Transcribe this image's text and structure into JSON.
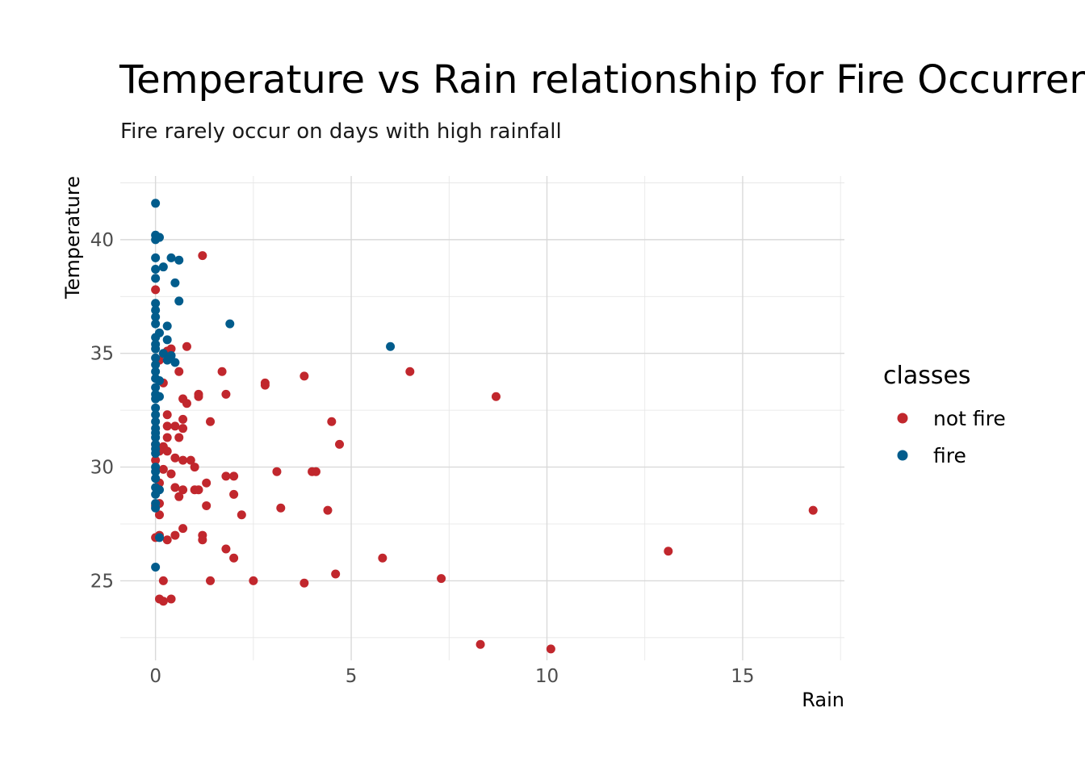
{
  "chart_data": {
    "type": "scatter",
    "title": "Temperature vs Rain relationship for Fire Occurrence",
    "subtitle": "Fire rarely occur on days with high rainfall",
    "xlabel": "Rain",
    "ylabel": "Temperature",
    "xlim": [
      -0.9,
      17.6
    ],
    "ylim": [
      21.5,
      42.8
    ],
    "x_ticks": [
      0,
      5,
      10,
      15
    ],
    "x_tick_labels": [
      "0",
      "5",
      "10",
      "15"
    ],
    "y_ticks": [
      25,
      30,
      35,
      40
    ],
    "y_tick_labels": [
      "25",
      "30",
      "35",
      "40"
    ],
    "grid": true,
    "legend_title": "classes",
    "legend_position": "right",
    "series": [
      {
        "name": "not fire",
        "color": "#c1272d",
        "points": [
          [
            1.2,
            39.3
          ],
          [
            0.0,
            37.8
          ],
          [
            0.8,
            35.3
          ],
          [
            0.4,
            35.2
          ],
          [
            0.3,
            35.1
          ],
          [
            0.1,
            34.7
          ],
          [
            0.6,
            34.2
          ],
          [
            0.2,
            33.7
          ],
          [
            0.7,
            33.0
          ],
          [
            0.8,
            32.8
          ],
          [
            0.3,
            32.3
          ],
          [
            0.7,
            32.1
          ],
          [
            0.5,
            31.8
          ],
          [
            0.3,
            31.8
          ],
          [
            0.7,
            31.7
          ],
          [
            0.3,
            31.3
          ],
          [
            0.6,
            31.3
          ],
          [
            0.0,
            31.0
          ],
          [
            0.2,
            30.9
          ],
          [
            0.3,
            30.7
          ],
          [
            0.1,
            30.7
          ],
          [
            0.5,
            30.4
          ],
          [
            0.7,
            30.3
          ],
          [
            0.9,
            30.3
          ],
          [
            0.0,
            30.3
          ],
          [
            1.0,
            30.0
          ],
          [
            0.2,
            29.9
          ],
          [
            0.4,
            29.7
          ],
          [
            0.1,
            29.3
          ],
          [
            0.5,
            29.1
          ],
          [
            0.7,
            29.0
          ],
          [
            1.0,
            29.0
          ],
          [
            0.6,
            28.7
          ],
          [
            0.1,
            28.4
          ],
          [
            0.0,
            28.3
          ],
          [
            0.1,
            27.9
          ],
          [
            0.7,
            27.3
          ],
          [
            0.5,
            27.0
          ],
          [
            0.1,
            27.0
          ],
          [
            0.3,
            26.8
          ],
          [
            0.0,
            26.9
          ],
          [
            0.2,
            25.0
          ],
          [
            0.1,
            24.2
          ],
          [
            0.2,
            24.1
          ],
          [
            0.4,
            24.2
          ],
          [
            1.1,
            33.2
          ],
          [
            1.1,
            33.1
          ],
          [
            1.4,
            32.0
          ],
          [
            1.3,
            29.3
          ],
          [
            1.1,
            29.0
          ],
          [
            1.3,
            28.3
          ],
          [
            1.2,
            27.0
          ],
          [
            1.2,
            26.8
          ],
          [
            1.4,
            25.0
          ],
          [
            1.7,
            34.2
          ],
          [
            1.8,
            33.2
          ],
          [
            1.8,
            29.6
          ],
          [
            2.0,
            29.6
          ],
          [
            2.0,
            28.8
          ],
          [
            2.2,
            27.9
          ],
          [
            1.8,
            26.4
          ],
          [
            2.0,
            26.0
          ],
          [
            2.5,
            25.0
          ],
          [
            2.8,
            33.7
          ],
          [
            2.8,
            33.6
          ],
          [
            3.1,
            29.8
          ],
          [
            3.2,
            28.2
          ],
          [
            3.8,
            34.0
          ],
          [
            4.0,
            29.8
          ],
          [
            4.1,
            29.8
          ],
          [
            4.5,
            32.0
          ],
          [
            4.7,
            31.0
          ],
          [
            4.4,
            28.1
          ],
          [
            4.6,
            25.3
          ],
          [
            3.8,
            24.9
          ],
          [
            6.5,
            34.2
          ],
          [
            5.8,
            26.0
          ],
          [
            7.3,
            25.1
          ],
          [
            8.7,
            33.1
          ],
          [
            8.3,
            22.2
          ],
          [
            10.1,
            22.0
          ],
          [
            13.1,
            26.3
          ],
          [
            16.8,
            28.1
          ]
        ]
      },
      {
        "name": "fire",
        "color": "#015c8c",
        "points": [
          [
            0.0,
            41.6
          ],
          [
            0.0,
            40.2
          ],
          [
            0.1,
            40.1
          ],
          [
            0.0,
            40.0
          ],
          [
            0.4,
            39.2
          ],
          [
            0.6,
            39.1
          ],
          [
            0.0,
            39.2
          ],
          [
            0.2,
            38.8
          ],
          [
            0.0,
            38.7
          ],
          [
            0.0,
            38.3
          ],
          [
            0.5,
            38.1
          ],
          [
            0.6,
            37.3
          ],
          [
            0.0,
            37.2
          ],
          [
            0.0,
            36.9
          ],
          [
            0.0,
            36.6
          ],
          [
            0.0,
            36.3
          ],
          [
            1.9,
            36.3
          ],
          [
            0.3,
            36.2
          ],
          [
            0.1,
            35.9
          ],
          [
            0.0,
            35.7
          ],
          [
            0.3,
            35.6
          ],
          [
            0.0,
            35.4
          ],
          [
            0.0,
            35.2
          ],
          [
            0.2,
            35.0
          ],
          [
            0.4,
            34.9
          ],
          [
            0.0,
            34.8
          ],
          [
            0.3,
            34.7
          ],
          [
            0.5,
            34.6
          ],
          [
            0.0,
            34.5
          ],
          [
            0.0,
            34.2
          ],
          [
            0.0,
            33.9
          ],
          [
            0.1,
            33.8
          ],
          [
            0.0,
            33.5
          ],
          [
            0.0,
            33.2
          ],
          [
            0.1,
            33.1
          ],
          [
            0.0,
            33.0
          ],
          [
            0.0,
            32.6
          ],
          [
            0.0,
            32.3
          ],
          [
            0.0,
            32.0
          ],
          [
            0.0,
            31.7
          ],
          [
            0.0,
            31.5
          ],
          [
            0.0,
            31.3
          ],
          [
            0.0,
            31.0
          ],
          [
            0.0,
            30.8
          ],
          [
            0.0,
            30.6
          ],
          [
            0.0,
            30.0
          ],
          [
            0.0,
            29.8
          ],
          [
            0.0,
            29.5
          ],
          [
            0.0,
            29.1
          ],
          [
            0.1,
            29.0
          ],
          [
            0.0,
            28.8
          ],
          [
            0.0,
            28.4
          ],
          [
            0.0,
            28.2
          ],
          [
            0.1,
            26.9
          ],
          [
            0.0,
            25.6
          ],
          [
            6.0,
            35.3
          ]
        ]
      }
    ]
  }
}
